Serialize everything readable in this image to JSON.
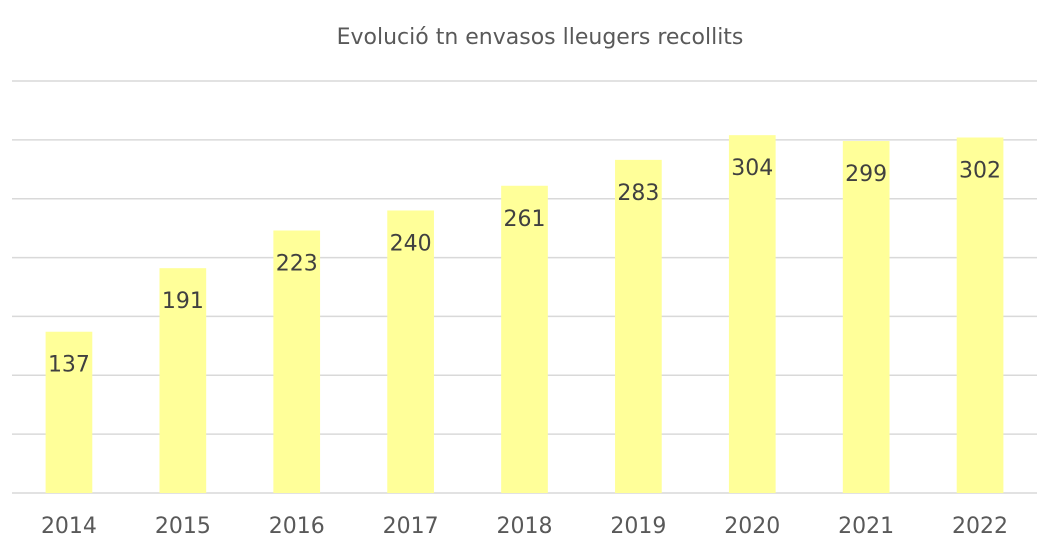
{
  "chart_data": {
    "type": "bar",
    "title": "Evolució tn envasos lleugers recollits",
    "categories": [
      "2014",
      "2015",
      "2016",
      "2017",
      "2018",
      "2019",
      "2020",
      "2021",
      "2022"
    ],
    "values": [
      137,
      191,
      223,
      240,
      261,
      283,
      304,
      299,
      302
    ],
    "color": "#ffff99",
    "ylim": [
      0,
      350
    ],
    "yticks": [
      0,
      50,
      100,
      150,
      200,
      250,
      300,
      350
    ],
    "grid": true
  }
}
